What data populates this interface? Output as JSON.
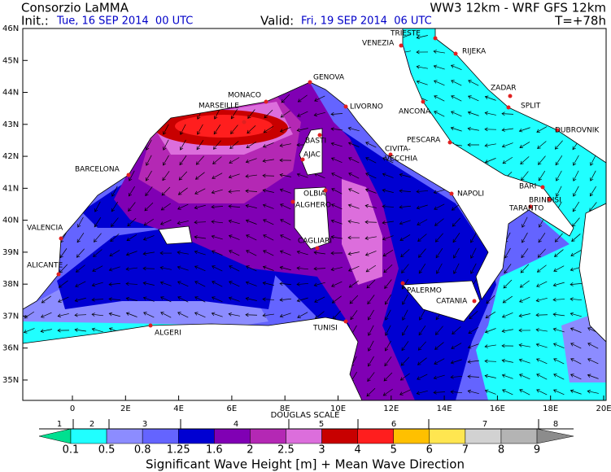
{
  "header": {
    "title": "Consorzio LaMMA",
    "model": "WW3 12km - WRF GFS 12km",
    "init_label": "Init.:",
    "init_value": "Tue, 16 SEP 2014  00 UTC",
    "valid_label": "Valid:",
    "valid_value": "Fri, 19 SEP 2014  06 UTC",
    "lead_time": "T=+78h"
  },
  "map": {
    "lat_labels": [
      "46N",
      "45N",
      "44N",
      "43N",
      "42N",
      "41N",
      "40N",
      "39N",
      "38N",
      "37N",
      "36N",
      "35N"
    ],
    "lon_labels": [
      "0",
      "2E",
      "4E",
      "6E",
      "8E",
      "10E",
      "12E",
      "14E",
      "16E",
      "18E",
      "20E"
    ],
    "cities": [
      "TRIESTE",
      "VENEZIA",
      "RIJEKA",
      "ZADAR",
      "SPLIT",
      "DUBROVNIK",
      "GENOVA",
      "MONACO",
      "MARSEILLE",
      "LIVORNO",
      "ANCONA",
      "PESCARA",
      "BASTI",
      "AJAC",
      "CIVITA-",
      "VECCHIA",
      "BARCELONA",
      "OLBIA",
      "ALGHERO",
      "NAPOLI",
      "BARI",
      "BRINDISI",
      "TARANTO",
      "VALENCIA",
      "CAGLIARI",
      "ALICANTE",
      "PALERMO",
      "CATANIA",
      "TUNISI",
      "ALGERI"
    ]
  },
  "legend": {
    "scale_title": "DOUGLAS SCALE",
    "douglas": [
      1,
      2,
      3,
      4,
      5,
      6,
      7,
      8
    ],
    "thresholds": [
      0.1,
      0.5,
      0.8,
      1.25,
      1.6,
      2,
      2.5,
      3,
      4,
      5,
      6,
      7,
      8,
      9
    ],
    "colors": [
      "#00e090",
      "#20ffff",
      "#8c8cff",
      "#6464ff",
      "#0000d2",
      "#8000b4",
      "#b428b4",
      "#dc6edc",
      "#c80000",
      "#ff1e1e",
      "#ffc000",
      "#ffe650",
      "#d2d2d2",
      "#b4b4b4",
      "#8c8c8c"
    ],
    "title": "Significant Wave Height [m] + Mean Wave Direction"
  }
}
